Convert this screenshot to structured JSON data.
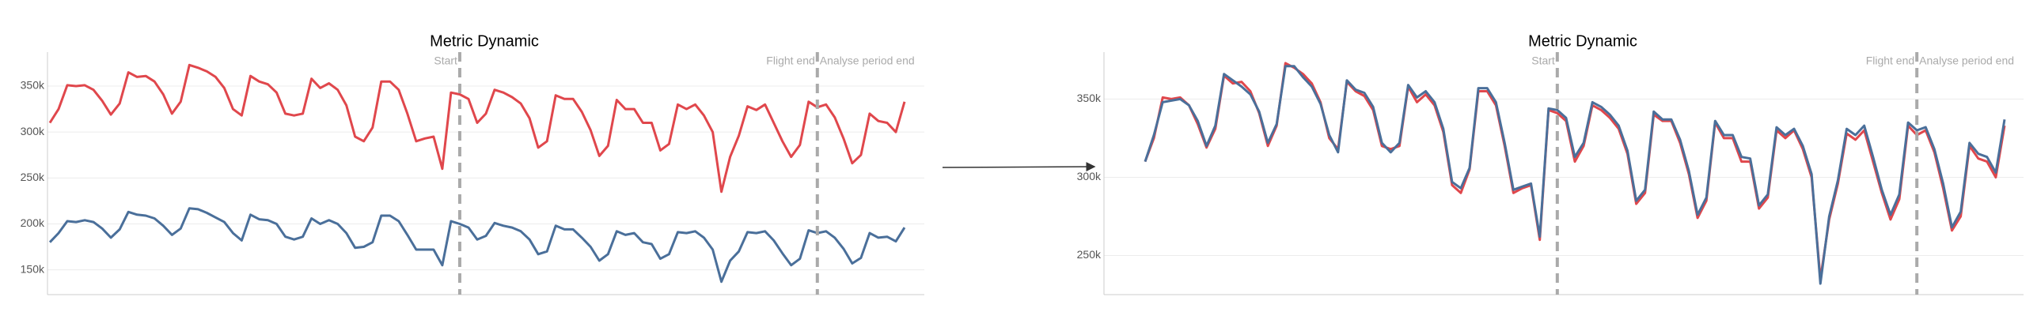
{
  "chart_data": [
    {
      "type": "line",
      "title": "Metric Dynamic",
      "categories": [
        null,
        null,
        null,
        null,
        null,
        null,
        null,
        null,
        null,
        null,
        null,
        null,
        null,
        null,
        null,
        null,
        null,
        null,
        null,
        null,
        null,
        null,
        null,
        null,
        null,
        null,
        null,
        null,
        null,
        null,
        null,
        null,
        null,
        null,
        null,
        null,
        null,
        null,
        null,
        null,
        null,
        null,
        null,
        null,
        null,
        null,
        null,
        null,
        null,
        null,
        null,
        null,
        null,
        null,
        null,
        null,
        null,
        null,
        null,
        null,
        null,
        null,
        null,
        null,
        null,
        null,
        null,
        null,
        null,
        null,
        null,
        null,
        null,
        null,
        null,
        null,
        null,
        null,
        null,
        null,
        null,
        null,
        null,
        null,
        null,
        null,
        null,
        null,
        null,
        null,
        null,
        null,
        null,
        null,
        null,
        null,
        null,
        null,
        null
      ],
      "series": [
        {
          "color": "#e0474c",
          "values": [
            310000,
            325000,
            351000,
            350000,
            351000,
            346000,
            334000,
            319000,
            331000,
            365000,
            360000,
            361000,
            355000,
            341000,
            320000,
            333000,
            373000,
            370000,
            366000,
            360000,
            348000,
            325000,
            318000,
            361000,
            355000,
            352000,
            343000,
            320000,
            318000,
            320000,
            358000,
            348000,
            353000,
            346000,
            329000,
            295000,
            290000,
            305000,
            355000,
            355000,
            346000,
            320000,
            290000,
            293000,
            295000,
            260000,
            343000,
            341000,
            336000,
            310000,
            320000,
            346000,
            343000,
            338000,
            331000,
            315000,
            283000,
            290000,
            340000,
            336000,
            336000,
            322000,
            302000,
            274000,
            285000,
            335000,
            325000,
            325000,
            310000,
            310000,
            280000,
            287000,
            330000,
            325000,
            330000,
            318000,
            300000,
            235000,
            273000,
            296000,
            328000,
            324000,
            330000,
            310000,
            290000,
            273000,
            286000,
            333000,
            327000,
            330000,
            316000,
            293000,
            266000,
            275000,
            320000,
            312000,
            310000,
            300000,
            333000
          ]
        },
        {
          "color": "#4a6f9a",
          "values": [
            180000,
            190000,
            203000,
            202000,
            204000,
            202000,
            195000,
            185000,
            194000,
            213000,
            210000,
            209000,
            206000,
            198000,
            188000,
            195000,
            217000,
            216000,
            212000,
            207000,
            202000,
            190000,
            182000,
            210000,
            205000,
            204000,
            200000,
            186000,
            183000,
            186000,
            206000,
            200000,
            204000,
            200000,
            190000,
            174000,
            175000,
            180000,
            209000,
            209000,
            203000,
            188000,
            172000,
            172000,
            172000,
            155000,
            203000,
            200000,
            196000,
            183000,
            187000,
            201000,
            198000,
            196000,
            192000,
            183000,
            167000,
            170000,
            198000,
            194000,
            194000,
            185000,
            175000,
            160000,
            167000,
            192000,
            188000,
            190000,
            180000,
            178000,
            162000,
            167000,
            191000,
            190000,
            192000,
            185000,
            172000,
            137000,
            160000,
            170000,
            191000,
            190000,
            192000,
            182000,
            168000,
            155000,
            162000,
            193000,
            190000,
            192000,
            185000,
            173000,
            157000,
            163000,
            190000,
            185000,
            186000,
            181000,
            196000
          ]
        }
      ],
      "ylim": [
        123000,
        387000
      ],
      "yticks": [
        {
          "value": 150000,
          "label": "150k"
        },
        {
          "value": 200000,
          "label": "200k"
        },
        {
          "value": 250000,
          "label": "250k"
        },
        {
          "value": 300000,
          "label": "300k"
        },
        {
          "value": 350000,
          "label": "350k"
        }
      ],
      "grid": true,
      "annotations": [
        {
          "x": 47,
          "label": "Start"
        },
        {
          "x": 88,
          "label": "Flight end"
        },
        {
          "x": 88,
          "label": "Analyse period end"
        }
      ]
    },
    {
      "type": "line",
      "title": "Metric Dynamic",
      "categories": [
        null,
        null,
        null,
        null,
        null,
        null,
        null,
        null,
        null,
        null,
        null,
        null,
        null,
        null,
        null,
        null,
        null,
        null,
        null,
        null,
        null,
        null,
        null,
        null,
        null,
        null,
        null,
        null,
        null,
        null,
        null,
        null,
        null,
        null,
        null,
        null,
        null,
        null,
        null,
        null,
        null,
        null,
        null,
        null,
        null,
        null,
        null,
        null,
        null,
        null,
        null,
        null,
        null,
        null,
        null,
        null,
        null,
        null,
        null,
        null,
        null,
        null,
        null,
        null,
        null,
        null,
        null,
        null,
        null,
        null,
        null,
        null,
        null,
        null,
        null,
        null,
        null,
        null,
        null,
        null,
        null,
        null,
        null,
        null,
        null,
        null,
        null,
        null,
        null,
        null,
        null,
        null,
        null,
        null,
        null,
        null,
        null,
        null,
        null
      ],
      "series": [
        {
          "color": "#e0474c",
          "values": [
            310000,
            325000,
            351000,
            350000,
            351000,
            346000,
            334000,
            319000,
            331000,
            365000,
            360000,
            361000,
            355000,
            341000,
            320000,
            333000,
            373000,
            370000,
            366000,
            360000,
            348000,
            325000,
            318000,
            361000,
            355000,
            352000,
            343000,
            320000,
            318000,
            320000,
            358000,
            348000,
            353000,
            346000,
            329000,
            295000,
            290000,
            305000,
            355000,
            355000,
            346000,
            320000,
            290000,
            293000,
            295000,
            260000,
            343000,
            341000,
            336000,
            310000,
            320000,
            346000,
            343000,
            338000,
            331000,
            315000,
            283000,
            290000,
            340000,
            336000,
            336000,
            322000,
            302000,
            274000,
            285000,
            335000,
            325000,
            325000,
            310000,
            310000,
            280000,
            287000,
            330000,
            325000,
            330000,
            318000,
            300000,
            235000,
            273000,
            296000,
            328000,
            324000,
            330000,
            310000,
            290000,
            273000,
            286000,
            333000,
            327000,
            330000,
            316000,
            293000,
            266000,
            275000,
            320000,
            312000,
            310000,
            300000,
            333000
          ]
        },
        {
          "color": "#4a6f9a",
          "values": [
            310000,
            327000,
            348000,
            349000,
            350000,
            346000,
            336000,
            320000,
            333000,
            366000,
            362000,
            358000,
            353000,
            342000,
            322000,
            334000,
            371000,
            371000,
            364000,
            358000,
            347000,
            327000,
            316000,
            362000,
            356000,
            354000,
            345000,
            322000,
            316000,
            322000,
            359000,
            351000,
            355000,
            348000,
            331000,
            297000,
            293000,
            306000,
            357000,
            357000,
            348000,
            322000,
            292000,
            294000,
            296000,
            262000,
            344000,
            343000,
            338000,
            313000,
            322000,
            348000,
            345000,
            340000,
            333000,
            317000,
            285000,
            292000,
            342000,
            337000,
            337000,
            324000,
            304000,
            276000,
            287000,
            336000,
            327000,
            327000,
            313000,
            312000,
            282000,
            289000,
            332000,
            327000,
            331000,
            320000,
            302000,
            232000,
            275000,
            298000,
            331000,
            327000,
            333000,
            313000,
            292000,
            276000,
            289000,
            335000,
            330000,
            332000,
            318000,
            296000,
            268000,
            278000,
            322000,
            315000,
            313000,
            303000,
            337000
          ]
        }
      ],
      "ylim": [
        225000,
        380000
      ],
      "yticks": [
        {
          "value": 250000,
          "label": "250k"
        },
        {
          "value": 300000,
          "label": "300k"
        },
        {
          "value": 350000,
          "label": "350k"
        }
      ],
      "grid": true,
      "annotations": [
        {
          "x": 47,
          "label": "Start"
        },
        {
          "x": 88,
          "label": "Flight end"
        },
        {
          "x": 88,
          "label": "Analyse period end"
        }
      ]
    }
  ]
}
